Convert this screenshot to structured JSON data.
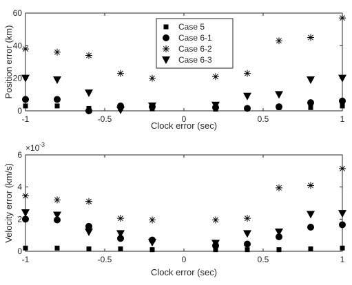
{
  "chart_data": [
    {
      "type": "scatter",
      "xlabel": "Clock error (sec)",
      "ylabel": "Position error (km)",
      "xlim": [
        -1,
        1
      ],
      "ylim": [
        0,
        60
      ],
      "x_ticks": [
        -1,
        -0.5,
        0,
        0.5,
        1
      ],
      "y_ticks": [
        0,
        20,
        40,
        60
      ],
      "x_tick_labels": [
        "-1",
        "-0.5",
        "0",
        "0.5",
        "1"
      ],
      "y_tick_labels": [
        "0",
        "20",
        "40",
        "60"
      ],
      "legend_position": "top-center",
      "series": [
        {
          "name": "Case 5",
          "marker": "square",
          "x": [
            -1,
            -0.8,
            -0.6,
            -0.4,
            -0.2,
            0.2,
            0.4,
            0.6,
            0.8,
            1
          ],
          "y": [
            3,
            3,
            1.5,
            1.5,
            1.2,
            1,
            1.5,
            2,
            2,
            3
          ]
        },
        {
          "name": "Case 6-1",
          "marker": "circle",
          "x": [
            -1,
            -0.8,
            -0.6,
            -0.4,
            -0.2,
            0.2,
            0.4,
            0.6,
            0.8,
            1
          ],
          "y": [
            7,
            7,
            0,
            3,
            2.5,
            2,
            1.5,
            2.5,
            5,
            6
          ]
        },
        {
          "name": "Case 6-2",
          "marker": "asterisk",
          "x": [
            -1,
            -0.8,
            -0.6,
            -0.4,
            -0.2,
            0.2,
            0.4,
            0.6,
            0.8,
            1
          ],
          "y": [
            38,
            36,
            34,
            23,
            20,
            21,
            23,
            43,
            45,
            57
          ]
        },
        {
          "name": "Case 6-3",
          "marker": "triangle-down",
          "x": [
            -1,
            -0.8,
            -0.6,
            -0.4,
            -0.2,
            0.2,
            0.4,
            0.6,
            0.8,
            1
          ],
          "y": [
            20,
            19,
            11,
            0.5,
            3,
            3.5,
            9,
            10,
            19,
            20
          ]
        }
      ]
    },
    {
      "type": "scatter",
      "xlabel": "Clock error (sec)",
      "ylabel": "Velocity error (km/s)",
      "scale_label": "×10",
      "scale_exponent": "-3",
      "xlim": [
        -1,
        1
      ],
      "ylim": [
        0,
        6
      ],
      "x_ticks": [
        -1,
        -0.5,
        0,
        0.5,
        1
      ],
      "y_ticks": [
        0,
        2,
        4,
        6
      ],
      "x_tick_labels": [
        "-1",
        "-0.5",
        "0",
        "0.5",
        "1"
      ],
      "y_tick_labels": [
        "0",
        "2",
        "4",
        "6"
      ],
      "series": [
        {
          "name": "Case 5",
          "marker": "square",
          "x": [
            -1,
            -0.8,
            -0.6,
            -0.4,
            -0.2,
            0.2,
            0.4,
            0.6,
            0.8,
            1
          ],
          "y": [
            0.2,
            0.2,
            0.15,
            0.15,
            0.1,
            0.1,
            0.1,
            0.1,
            0.15,
            0.2
          ]
        },
        {
          "name": "Case 6-1",
          "marker": "circle",
          "x": [
            -1,
            -0.8,
            -0.6,
            -0.4,
            -0.2,
            0.2,
            0.4,
            0.6,
            0.8,
            1
          ],
          "y": [
            2,
            1.95,
            1.55,
            0.8,
            0.7,
            0.35,
            0.45,
            0.9,
            1.5,
            1.65
          ]
        },
        {
          "name": "Case 6-2",
          "marker": "asterisk",
          "x": [
            -1,
            -0.8,
            -0.6,
            -0.4,
            -0.2,
            0.2,
            0.4,
            0.6,
            0.8,
            1
          ],
          "y": [
            3.45,
            3.2,
            3.1,
            2.05,
            1.95,
            1.95,
            2.05,
            3.95,
            4.1,
            5.15
          ]
        },
        {
          "name": "Case 6-3",
          "marker": "triangle-down",
          "x": [
            -1,
            -0.8,
            -0.6,
            -0.4,
            -0.2,
            0.2,
            0.4,
            0.6,
            0.8,
            1
          ],
          "y": [
            2.4,
            2.25,
            1.2,
            1.1,
            0.55,
            0.5,
            1.1,
            1.2,
            2.3,
            2.35
          ]
        }
      ]
    }
  ]
}
